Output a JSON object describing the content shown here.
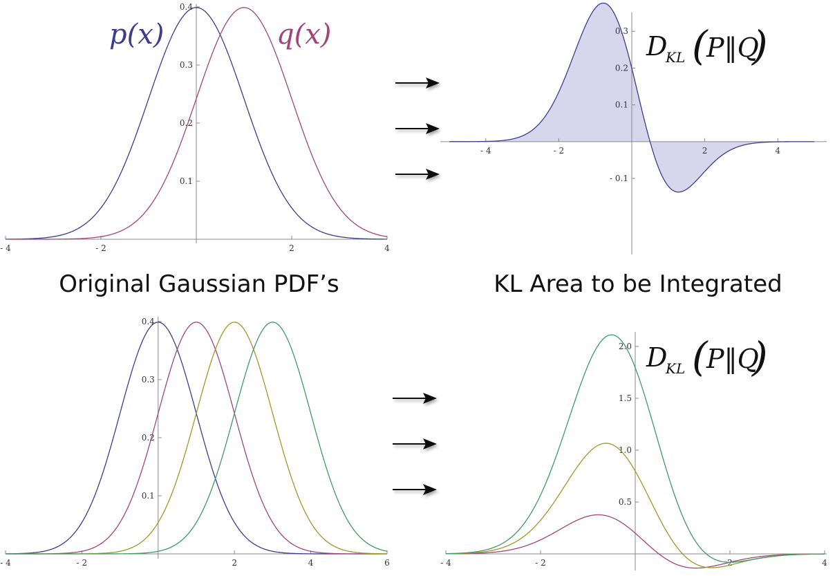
{
  "colors": {
    "p": "#3d3b8e",
    "q": "#a0457a",
    "olive": "#9a9a2a",
    "green": "#3f9a63",
    "kl_fill": "#d6d7ec",
    "kl_line": "#3d3b8e",
    "axis": "#888888"
  },
  "captions": {
    "left": "Original Gaussian PDF’s",
    "right": "KL Area to be Integrated"
  },
  "chart_data": [
    {
      "id": "top-left",
      "type": "line",
      "xlim": [
        -4,
        4
      ],
      "ylim": [
        0,
        0.4
      ],
      "xticks": [
        -4,
        -2,
        2,
        4
      ],
      "xtick_labels": [
        "- 4",
        "- 2",
        "2",
        "4"
      ],
      "yticks": [
        0.1,
        0.2,
        0.3,
        0.4
      ],
      "ytick_labels": [
        "0.1",
        "0.2",
        "0.3",
        "0.4"
      ],
      "series": [
        {
          "name": "p(x)",
          "mean": 0,
          "sd": 1,
          "color": "#3d3b8e"
        },
        {
          "name": "q(x)",
          "mean": 1,
          "sd": 1,
          "color": "#a0457a"
        }
      ]
    },
    {
      "id": "top-right",
      "type": "area",
      "xlim": [
        -5,
        5
      ],
      "ylim": [
        -0.13,
        0.37
      ],
      "xticks": [
        -4,
        -2,
        2,
        4
      ],
      "xtick_labels": [
        "- 4",
        "- 2",
        "2",
        "4"
      ],
      "yticks": [
        -0.1,
        0.1,
        0.2,
        0.3
      ],
      "ytick_labels": [
        "- 0.1",
        "0.1",
        "0.2",
        "0.3"
      ],
      "label_main": "D",
      "label_sub": "KL",
      "label_args": "P‖Q",
      "series": [
        {
          "p_mean": 0,
          "q_mean": 1,
          "sd": 1,
          "color": "#3d3b8e",
          "fill": "#d6d7ec"
        }
      ]
    },
    {
      "id": "bottom-left",
      "type": "line",
      "xlim": [
        -4,
        6
      ],
      "ylim": [
        0,
        0.4
      ],
      "xticks": [
        -4,
        -2,
        2,
        4,
        6
      ],
      "xtick_labels": [
        "- 4",
        "- 2",
        "2",
        "4",
        "6"
      ],
      "yticks": [
        0.1,
        0.2,
        0.3,
        0.4
      ],
      "ytick_labels": [
        "0.1",
        "0.2",
        "0.3",
        "0.4"
      ],
      "series": [
        {
          "mean": 0,
          "sd": 1,
          "color": "#3d3b8e"
        },
        {
          "mean": 1,
          "sd": 1,
          "color": "#a0457a"
        },
        {
          "mean": 2,
          "sd": 1,
          "color": "#9a9a2a"
        },
        {
          "mean": 3,
          "sd": 1,
          "color": "#3f9a63"
        }
      ]
    },
    {
      "id": "bottom-right",
      "type": "line",
      "xlim": [
        -4,
        4
      ],
      "ylim": [
        0,
        2.0
      ],
      "xticks": [
        -4,
        -2,
        2,
        4
      ],
      "xtick_labels": [
        "- 4",
        "- 2",
        "2",
        "4"
      ],
      "yticks": [
        0.5,
        1.0,
        1.5,
        2.0
      ],
      "ytick_labels": [
        "0.5",
        "1.0",
        "1.5",
        "2.0"
      ],
      "label_main": "D",
      "label_sub": "KL",
      "label_args": "P‖Q",
      "series": [
        {
          "p_mean": 0,
          "q_mean": 1,
          "sd": 1,
          "color": "#a0457a"
        },
        {
          "p_mean": 0,
          "q_mean": 2,
          "sd": 1,
          "color": "#9a9a2a"
        },
        {
          "p_mean": 0,
          "q_mean": 3,
          "sd": 1,
          "color": "#3f9a63"
        }
      ]
    }
  ]
}
